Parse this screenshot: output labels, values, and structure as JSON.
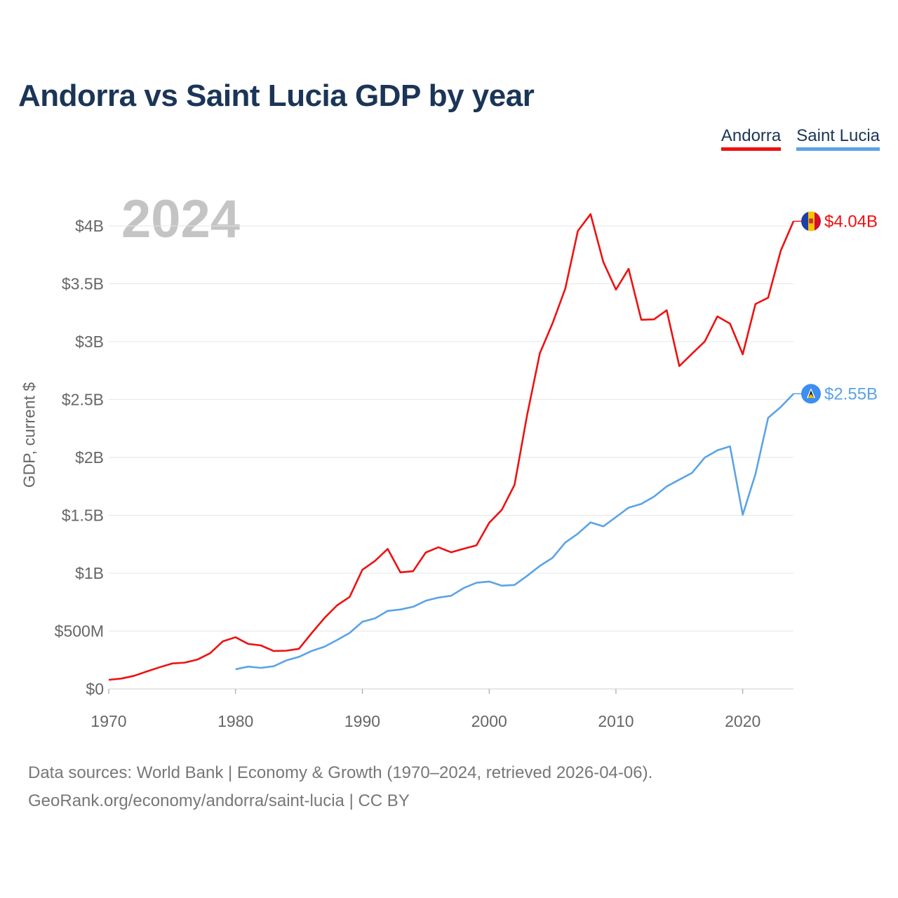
{
  "chart_data": {
    "type": "line",
    "title": "Andorra vs Saint Lucia GDP by year",
    "year_label": "2024",
    "ylabel": "GDP, current $",
    "xlabel": "",
    "xlim": [
      1970,
      2024
    ],
    "ylim": [
      0,
      4200000000
    ],
    "y_ticks": [
      {
        "value": 0,
        "label": "$0"
      },
      {
        "value": 500000000,
        "label": "$500M"
      },
      {
        "value": 1000000000,
        "label": "$1B"
      },
      {
        "value": 1500000000,
        "label": "$1.5B"
      },
      {
        "value": 2000000000,
        "label": "$2B"
      },
      {
        "value": 2500000000,
        "label": "$2.5B"
      },
      {
        "value": 3000000000,
        "label": "$3B"
      },
      {
        "value": 3500000000,
        "label": "$3.5B"
      },
      {
        "value": 4000000000,
        "label": "$4B"
      }
    ],
    "x_ticks": [
      1970,
      1980,
      1990,
      2000,
      2010,
      2020
    ],
    "grid": true,
    "legend": "top-right",
    "series": [
      {
        "name": "Andorra",
        "color": "#ee1111",
        "end_label": "$4.04B",
        "flag_icon": "andorra-flag-icon",
        "x": [
          1970,
          1971,
          1972,
          1973,
          1974,
          1975,
          1976,
          1977,
          1978,
          1979,
          1980,
          1981,
          1982,
          1983,
          1984,
          1985,
          1986,
          1987,
          1988,
          1989,
          1990,
          1991,
          1992,
          1993,
          1994,
          1995,
          1996,
          1997,
          1998,
          1999,
          2000,
          2001,
          2002,
          2003,
          2004,
          2005,
          2006,
          2007,
          2008,
          2009,
          2010,
          2011,
          2012,
          2013,
          2014,
          2015,
          2016,
          2017,
          2018,
          2019,
          2020,
          2021,
          2022,
          2023,
          2024
        ],
        "values": [
          78600000,
          89400000,
          113400000,
          150800000,
          186600000,
          220100000,
          227300000,
          254000000,
          308300000,
          411600000,
          446400000,
          388900000,
          375900000,
          327900000,
          330100000,
          346700000,
          482000000,
          611300000,
          721400000,
          795400000,
          1029000000,
          1106900000,
          1210000000,
          1007000000,
          1017000000,
          1178700000,
          1223600000,
          1180800000,
          1211700000,
          1239900000,
          1434400000,
          1547000000,
          1763000000,
          2367000000,
          2900000000,
          3159000000,
          3457000000,
          3957000000,
          4102000000,
          3689000000,
          3450000000,
          3629000000,
          3189000000,
          3193000000,
          3271000000,
          2789000000,
          2896000000,
          3001000000,
          3218000000,
          3155000000,
          2891000000,
          3325000000,
          3380000000,
          3786000000,
          4040000000
        ]
      },
      {
        "name": "Saint Lucia",
        "color": "#5ba3e6",
        "end_label": "$2.55B",
        "flag_icon": "saint-lucia-flag-icon",
        "x": [
          1980,
          1981,
          1982,
          1983,
          1984,
          1985,
          1986,
          1987,
          1988,
          1989,
          1990,
          1991,
          1992,
          1993,
          1994,
          1995,
          1996,
          1997,
          1998,
          1999,
          2000,
          2001,
          2002,
          2003,
          2004,
          2005,
          2006,
          2007,
          2008,
          2009,
          2010,
          2011,
          2012,
          2013,
          2014,
          2015,
          2016,
          2017,
          2018,
          2019,
          2020,
          2021,
          2022,
          2023,
          2024
        ],
        "values": [
          170000000,
          193000000,
          182000000,
          196000000,
          246000000,
          277000000,
          328000000,
          364000000,
          422000000,
          484000000,
          580000000,
          610000000,
          674000000,
          686000000,
          710000000,
          762000000,
          789000000,
          805000000,
          872000000,
          917000000,
          928000000,
          892000000,
          898000000,
          977000000,
          1063000000,
          1133000000,
          1265000000,
          1341000000,
          1439000000,
          1404000000,
          1485000000,
          1566000000,
          1599000000,
          1661000000,
          1749000000,
          1808000000,
          1866000000,
          1998000000,
          2061000000,
          2095000000,
          1505000000,
          1855000000,
          2342000000,
          2436000000,
          2550000000
        ]
      }
    ]
  },
  "source": {
    "line1": "Data sources: World Bank | Economy & Growth (1970–2024, retrieved 2026-04-06).",
    "line2": "GeoRank.org/economy/andorra/saint-lucia | CC BY"
  }
}
